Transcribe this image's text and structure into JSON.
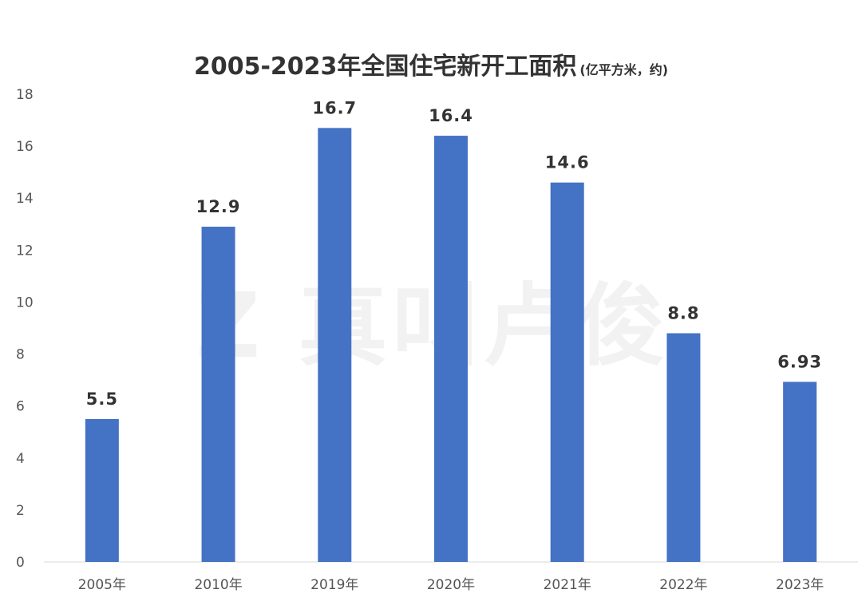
{
  "chart_data": {
    "type": "bar",
    "title": "2005-2023年全国住宅新开工面积",
    "subtitle": "(亿平方米，约)",
    "categories": [
      "2005年",
      "2010年",
      "2019年",
      "2020年",
      "2021年",
      "2022年",
      "2023年"
    ],
    "values": [
      5.5,
      12.9,
      16.7,
      16.4,
      14.6,
      8.8,
      6.93
    ],
    "data_labels": [
      "5.5",
      "12.9",
      "16.7",
      "16.4",
      "14.6",
      "8.8",
      "6.93"
    ],
    "ylim": [
      0,
      18
    ],
    "yticks": [
      "0",
      "2",
      "4",
      "6",
      "8",
      "10",
      "12",
      "14",
      "16",
      "18"
    ],
    "xlabel": "",
    "ylabel": "",
    "grid": false,
    "legend": "none",
    "bar_color": "#4472C4"
  },
  "watermark": "真叫卢俊"
}
